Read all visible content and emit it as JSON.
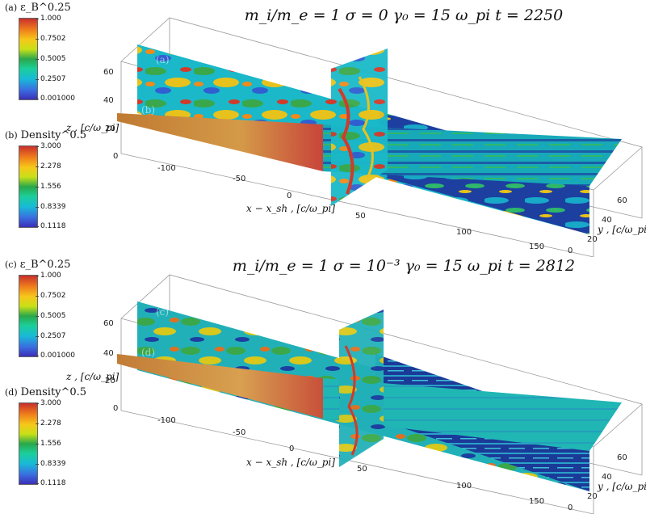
{
  "panels": [
    {
      "title": "m_i/m_e = 1    σ = 0    γ₀ = 15    ω_pi t = 2250",
      "colorbars": [
        {
          "label": "(a)",
          "quantity": "ε_B^0.25",
          "ticks": [
            "1.000",
            "0.7502",
            "0.5005",
            "0.2507",
            "0.001000"
          ]
        },
        {
          "label": "(b)",
          "quantity": "Density^0.5",
          "ticks": [
            "3.000",
            "2.278",
            "1.556",
            "0.8339",
            "0.1118"
          ]
        }
      ],
      "slice_labels": [
        "(a)",
        "(b)"
      ],
      "axes": {
        "x_label": "x − x_sh ,  [c/ω_pi]",
        "y_label": "y ,  [c/ω_pi]",
        "z_label": "z ,  [c/ω_pi]",
        "x_ticks": [
          "-100",
          "-50",
          "0",
          "50",
          "100",
          "150"
        ],
        "y_ticks": [
          "0",
          "20",
          "40",
          "60"
        ],
        "z_ticks": [
          "0",
          "20",
          "40",
          "60"
        ]
      }
    },
    {
      "title": "m_i/m_e = 1    σ = 10⁻³    γ₀ = 15    ω_pi t = 2812",
      "colorbars": [
        {
          "label": "(c)",
          "quantity": "ε_B^0.25",
          "ticks": [
            "1.000",
            "0.7502",
            "0.5005",
            "0.2507",
            "0.001000"
          ]
        },
        {
          "label": "(d)",
          "quantity": "Density^0.5",
          "ticks": [
            "3.000",
            "2.278",
            "1.556",
            "0.8339",
            "0.1118"
          ]
        }
      ],
      "slice_labels": [
        "(c)",
        "(d)"
      ],
      "axes": {
        "x_label": "x − x_sh ,  [c/ω_pi]",
        "y_label": "y ,  [c/ω_pi]",
        "z_label": "z ,  [c/ω_pi]",
        "x_ticks": [
          "-100",
          "-50",
          "0",
          "50",
          "100",
          "150"
        ],
        "y_ticks": [
          "0",
          "20",
          "40",
          "60"
        ],
        "z_ticks": [
          "0",
          "20",
          "40",
          "60"
        ]
      }
    }
  ],
  "colors": {
    "upstream_density": "#c98a3a",
    "downstream_blue": "#1c3fa0",
    "turbulent_cyan": "#1ab8c8",
    "turbulent_green": "#3aa84a",
    "hot_red": "#d23a2a"
  }
}
